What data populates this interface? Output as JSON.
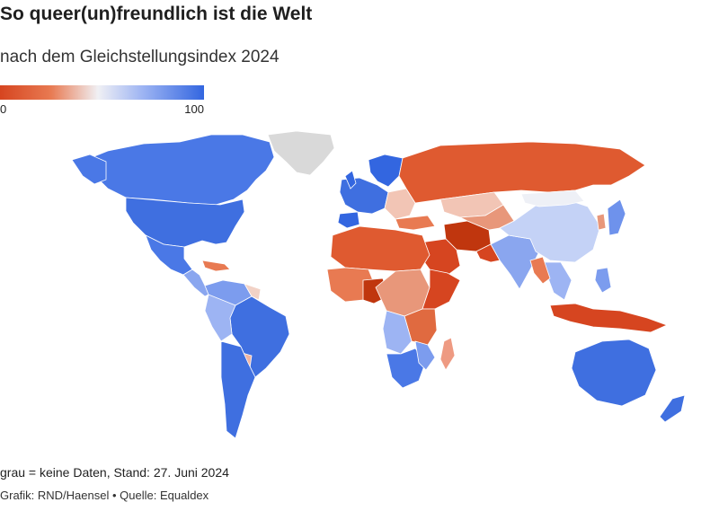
{
  "title": "So queer(un)freundlich ist die Welt",
  "subtitle": "nach dem Gleichstellungsindex 2024",
  "legend": {
    "min": "0",
    "max": "100"
  },
  "colors": {
    "low": "#d64520",
    "mid_low": "#e87a52",
    "neutral": "#f0f0f4",
    "mid_high": "#9db4f3",
    "high": "#3366e0",
    "no_data": "#d9d9d9"
  },
  "footer": {
    "note": "grau = keine Daten, Stand: 27. Juni 2024",
    "credit": "Grafik: RND/Haensel • Quelle: Equaldex"
  }
}
